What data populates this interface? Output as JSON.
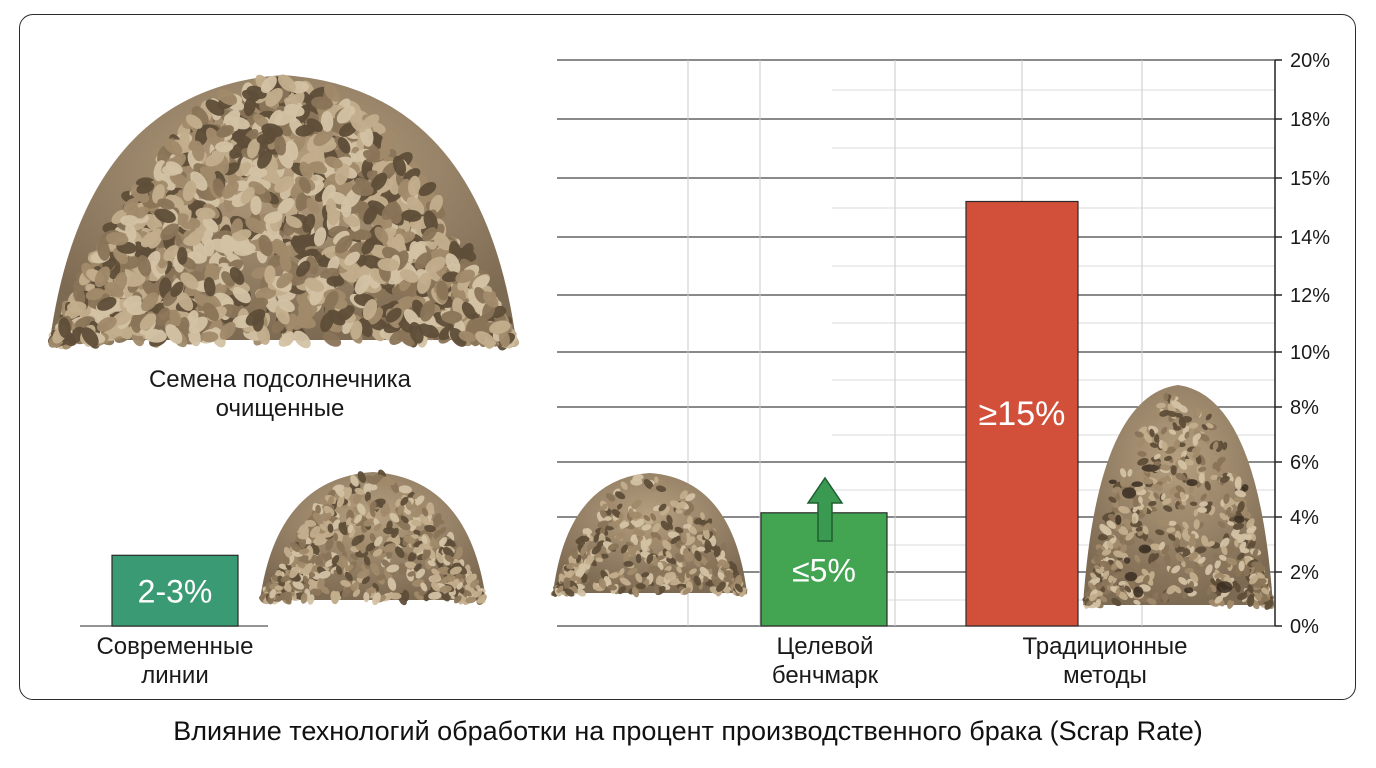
{
  "chart_data": {
    "type": "bar",
    "title": "Влияние технологий обработки на процент производственного брака (Scrap Rate)",
    "categories": [
      "Современные линии",
      "Целевой бенчмарк",
      "Традиционные методы"
    ],
    "category_lines": [
      [
        "Современные",
        "линии"
      ],
      [
        "Целевой",
        "бенчмарк"
      ],
      [
        "Традиционные",
        "методы"
      ]
    ],
    "values": [
      2.5,
      4,
      15
    ],
    "data_labels": [
      "2-3%",
      "≤5%",
      "≥15%"
    ],
    "bar_colors": [
      "#3a9a74",
      "#43a452",
      "#d2503a"
    ],
    "yticks": [
      "0%",
      "2%",
      "4%",
      "6%",
      "8%",
      "10%",
      "12%",
      "14%",
      "15%",
      "18%",
      "20%"
    ],
    "ylim": [
      0,
      20
    ],
    "grid": true,
    "yaxis_position": "right",
    "annotations": {
      "image_caption_lines": [
        "Семена подсолнечника",
        "очищенные"
      ],
      "arrow": "up-arrow-over-target-bar"
    }
  },
  "colors": {
    "seed_base": "#8a7458",
    "seed_light": "#c2ad8c",
    "seed_dark": "#5e4d38",
    "impurity": "#3a2e22"
  }
}
